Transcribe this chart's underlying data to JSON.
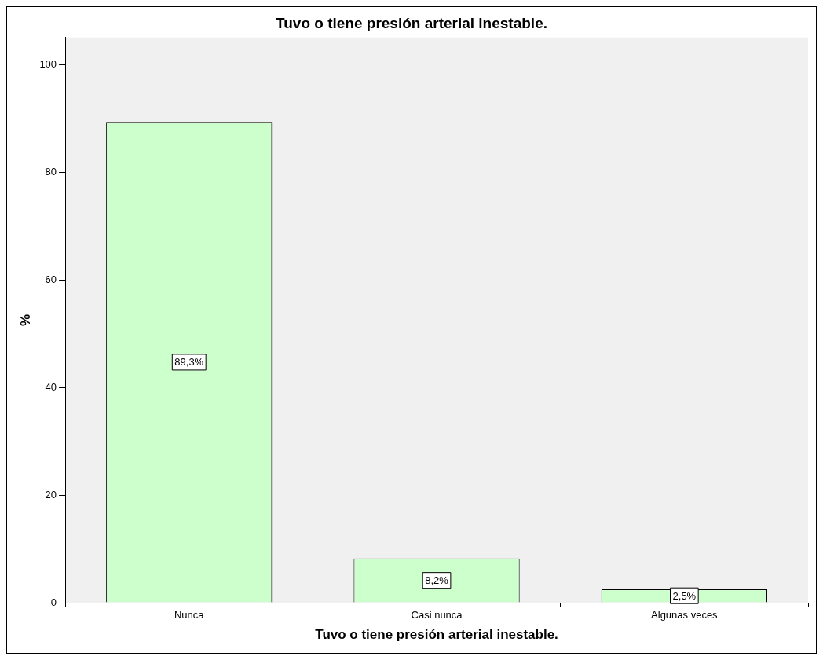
{
  "chart_data": {
    "type": "bar",
    "title": "Tuvo o tiene presión arterial inestable.",
    "xlabel": "Tuvo o tiene presión arterial inestable.",
    "ylabel": "%",
    "categories": [
      "Nunca",
      "Casi nunca",
      "Algunas veces"
    ],
    "values": [
      89.3,
      8.2,
      2.5
    ],
    "value_labels": [
      "89,3%",
      "8,2%",
      "2,5%"
    ],
    "color": "#ccffcc",
    "ylim": [
      0,
      105
    ],
    "yticks": [
      0,
      20,
      40,
      60,
      80,
      100
    ],
    "grid": false,
    "legend": false
  }
}
